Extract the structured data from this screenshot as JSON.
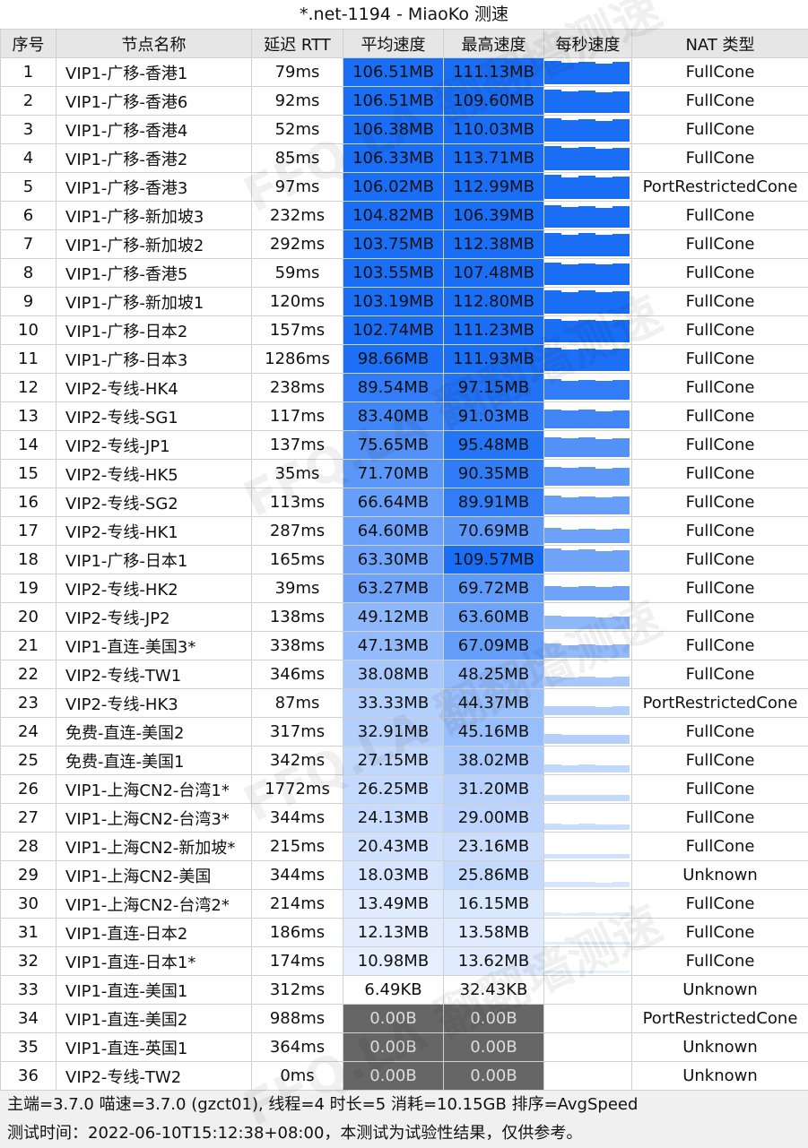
{
  "title": "*.net-1194 - MiaoKo 测速",
  "headers": [
    "序号",
    "节点名称",
    "延迟 RTT",
    "平均速度",
    "最高速度",
    "每秒速度",
    "NAT 类型"
  ],
  "rows": [
    {
      "id": "1",
      "name": "VIP1-广移-香港1",
      "rtt": "79ms",
      "avg": "106.51MB",
      "max": "111.13MB",
      "nat": "FullCone",
      "avg_mb": 106.51,
      "max_mb": 111.13
    },
    {
      "id": "2",
      "name": "VIP1-广移-香港6",
      "rtt": "92ms",
      "avg": "106.51MB",
      "max": "109.60MB",
      "nat": "FullCone",
      "avg_mb": 106.51,
      "max_mb": 109.6
    },
    {
      "id": "3",
      "name": "VIP1-广移-香港4",
      "rtt": "52ms",
      "avg": "106.38MB",
      "max": "110.03MB",
      "nat": "FullCone",
      "avg_mb": 106.38,
      "max_mb": 110.03
    },
    {
      "id": "4",
      "name": "VIP1-广移-香港2",
      "rtt": "85ms",
      "avg": "106.33MB",
      "max": "113.71MB",
      "nat": "FullCone",
      "avg_mb": 106.33,
      "max_mb": 113.71
    },
    {
      "id": "5",
      "name": "VIP1-广移-香港3",
      "rtt": "97ms",
      "avg": "106.02MB",
      "max": "112.99MB",
      "nat": "PortRestrictedCone",
      "avg_mb": 106.02,
      "max_mb": 112.99
    },
    {
      "id": "6",
      "name": "VIP1-广移-新加坡3",
      "rtt": "232ms",
      "avg": "104.82MB",
      "max": "106.39MB",
      "nat": "FullCone",
      "avg_mb": 104.82,
      "max_mb": 106.39
    },
    {
      "id": "7",
      "name": "VIP1-广移-新加坡2",
      "rtt": "292ms",
      "avg": "103.75MB",
      "max": "112.38MB",
      "nat": "FullCone",
      "avg_mb": 103.75,
      "max_mb": 112.38
    },
    {
      "id": "8",
      "name": "VIP1-广移-香港5",
      "rtt": "59ms",
      "avg": "103.55MB",
      "max": "107.48MB",
      "nat": "FullCone",
      "avg_mb": 103.55,
      "max_mb": 107.48
    },
    {
      "id": "9",
      "name": "VIP1-广移-新加坡1",
      "rtt": "120ms",
      "avg": "103.19MB",
      "max": "112.80MB",
      "nat": "FullCone",
      "avg_mb": 103.19,
      "max_mb": 112.8
    },
    {
      "id": "10",
      "name": "VIP1-广移-日本2",
      "rtt": "157ms",
      "avg": "102.74MB",
      "max": "111.23MB",
      "nat": "FullCone",
      "avg_mb": 102.74,
      "max_mb": 111.23
    },
    {
      "id": "11",
      "name": "VIP1-广移-日本3",
      "rtt": "1286ms",
      "avg": "98.66MB",
      "max": "111.93MB",
      "nat": "FullCone",
      "avg_mb": 98.66,
      "max_mb": 111.93
    },
    {
      "id": "12",
      "name": "VIP2-专线-HK4",
      "rtt": "238ms",
      "avg": "89.54MB",
      "max": "97.15MB",
      "nat": "FullCone",
      "avg_mb": 89.54,
      "max_mb": 97.15
    },
    {
      "id": "13",
      "name": "VIP2-专线-SG1",
      "rtt": "117ms",
      "avg": "83.40MB",
      "max": "91.03MB",
      "nat": "FullCone",
      "avg_mb": 83.4,
      "max_mb": 91.03
    },
    {
      "id": "14",
      "name": "VIP2-专线-JP1",
      "rtt": "137ms",
      "avg": "75.65MB",
      "max": "95.48MB",
      "nat": "FullCone",
      "avg_mb": 75.65,
      "max_mb": 95.48
    },
    {
      "id": "15",
      "name": "VIP2-专线-HK5",
      "rtt": "35ms",
      "avg": "71.70MB",
      "max": "90.35MB",
      "nat": "FullCone",
      "avg_mb": 71.7,
      "max_mb": 90.35
    },
    {
      "id": "16",
      "name": "VIP2-专线-SG2",
      "rtt": "113ms",
      "avg": "66.64MB",
      "max": "89.91MB",
      "nat": "FullCone",
      "avg_mb": 66.64,
      "max_mb": 89.91
    },
    {
      "id": "17",
      "name": "VIP2-专线-HK1",
      "rtt": "287ms",
      "avg": "64.60MB",
      "max": "70.69MB",
      "nat": "FullCone",
      "avg_mb": 64.6,
      "max_mb": 70.69
    },
    {
      "id": "18",
      "name": "VIP1-广移-日本1",
      "rtt": "165ms",
      "avg": "63.30MB",
      "max": "109.57MB",
      "nat": "FullCone",
      "avg_mb": 63.3,
      "max_mb": 109.57
    },
    {
      "id": "19",
      "name": "VIP2-专线-HK2",
      "rtt": "39ms",
      "avg": "63.27MB",
      "max": "69.72MB",
      "nat": "FullCone",
      "avg_mb": 63.27,
      "max_mb": 69.72
    },
    {
      "id": "20",
      "name": "VIP2-专线-JP2",
      "rtt": "138ms",
      "avg": "49.12MB",
      "max": "63.60MB",
      "nat": "FullCone",
      "avg_mb": 49.12,
      "max_mb": 63.6
    },
    {
      "id": "21",
      "name": "VIP1-直连-美国3*",
      "rtt": "338ms",
      "avg": "47.13MB",
      "max": "67.09MB",
      "nat": "FullCone",
      "avg_mb": 47.13,
      "max_mb": 67.09
    },
    {
      "id": "22",
      "name": "VIP2-专线-TW1",
      "rtt": "346ms",
      "avg": "38.08MB",
      "max": "48.25MB",
      "nat": "FullCone",
      "avg_mb": 38.08,
      "max_mb": 48.25
    },
    {
      "id": "23",
      "name": "VIP2-专线-HK3",
      "rtt": "87ms",
      "avg": "33.33MB",
      "max": "44.37MB",
      "nat": "PortRestrictedCone",
      "avg_mb": 33.33,
      "max_mb": 44.37
    },
    {
      "id": "24",
      "name": "免费-直连-美国2",
      "rtt": "317ms",
      "avg": "32.91MB",
      "max": "45.16MB",
      "nat": "FullCone",
      "avg_mb": 32.91,
      "max_mb": 45.16
    },
    {
      "id": "25",
      "name": "免费-直连-美国1",
      "rtt": "342ms",
      "avg": "27.15MB",
      "max": "38.02MB",
      "nat": "FullCone",
      "avg_mb": 27.15,
      "max_mb": 38.02
    },
    {
      "id": "26",
      "name": "VIP1-上海CN2-台湾1*",
      "rtt": "1772ms",
      "avg": "26.25MB",
      "max": "31.20MB",
      "nat": "FullCone",
      "avg_mb": 26.25,
      "max_mb": 31.2
    },
    {
      "id": "27",
      "name": "VIP1-上海CN2-台湾3*",
      "rtt": "344ms",
      "avg": "24.13MB",
      "max": "29.00MB",
      "nat": "FullCone",
      "avg_mb": 24.13,
      "max_mb": 29.0
    },
    {
      "id": "28",
      "name": "VIP1-上海CN2-新加坡*",
      "rtt": "215ms",
      "avg": "20.43MB",
      "max": "23.16MB",
      "nat": "FullCone",
      "avg_mb": 20.43,
      "max_mb": 23.16
    },
    {
      "id": "29",
      "name": "VIP1-上海CN2-美国",
      "rtt": "344ms",
      "avg": "18.03MB",
      "max": "25.86MB",
      "nat": "Unknown",
      "avg_mb": 18.03,
      "max_mb": 25.86
    },
    {
      "id": "30",
      "name": "VIP1-上海CN2-台湾2*",
      "rtt": "214ms",
      "avg": "13.49MB",
      "max": "16.15MB",
      "nat": "FullCone",
      "avg_mb": 13.49,
      "max_mb": 16.15
    },
    {
      "id": "31",
      "name": "VIP1-直连-日本2",
      "rtt": "186ms",
      "avg": "12.13MB",
      "max": "13.58MB",
      "nat": "FullCone",
      "avg_mb": 12.13,
      "max_mb": 13.58
    },
    {
      "id": "32",
      "name": "VIP1-直连-日本1*",
      "rtt": "174ms",
      "avg": "10.98MB",
      "max": "13.62MB",
      "nat": "FullCone",
      "avg_mb": 10.98,
      "max_mb": 13.62
    },
    {
      "id": "33",
      "name": "VIP1-直连-美国1",
      "rtt": "312ms",
      "avg": "6.49KB",
      "max": "32.43KB",
      "nat": "Unknown",
      "avg_mb": 0.0065,
      "max_mb": 0.032
    },
    {
      "id": "34",
      "name": "VIP1-直连-美国2",
      "rtt": "988ms",
      "avg": "0.00B",
      "max": "0.00B",
      "nat": "PortRestrictedCone",
      "avg_mb": 0,
      "max_mb": 0
    },
    {
      "id": "35",
      "name": "VIP1-直连-英国1",
      "rtt": "364ms",
      "avg": "0.00B",
      "max": "0.00B",
      "nat": "Unknown",
      "avg_mb": 0,
      "max_mb": 0
    },
    {
      "id": "36",
      "name": "VIP2-专线-TW2",
      "rtt": "0ms",
      "avg": "0.00B",
      "max": "0.00B",
      "nat": "Unknown",
      "avg_mb": 0,
      "max_mb": 0
    }
  ],
  "footer": {
    "line1": "主端=3.7.0 喵速=3.7.0 (gzct01), 线程=4 时长=5 消耗=10.15GB 排序=AvgSpeed",
    "line2": "测试时间：2022-06-10T15:12:38+08:00，本测试为试验性结果，仅供参考。"
  },
  "watermark": "FFQ.LA 翻翻墙测速",
  "colors": {
    "speed_full": "#1a6ef6",
    "speed_empty": "#ffffff",
    "zero_bg": "#666666"
  }
}
